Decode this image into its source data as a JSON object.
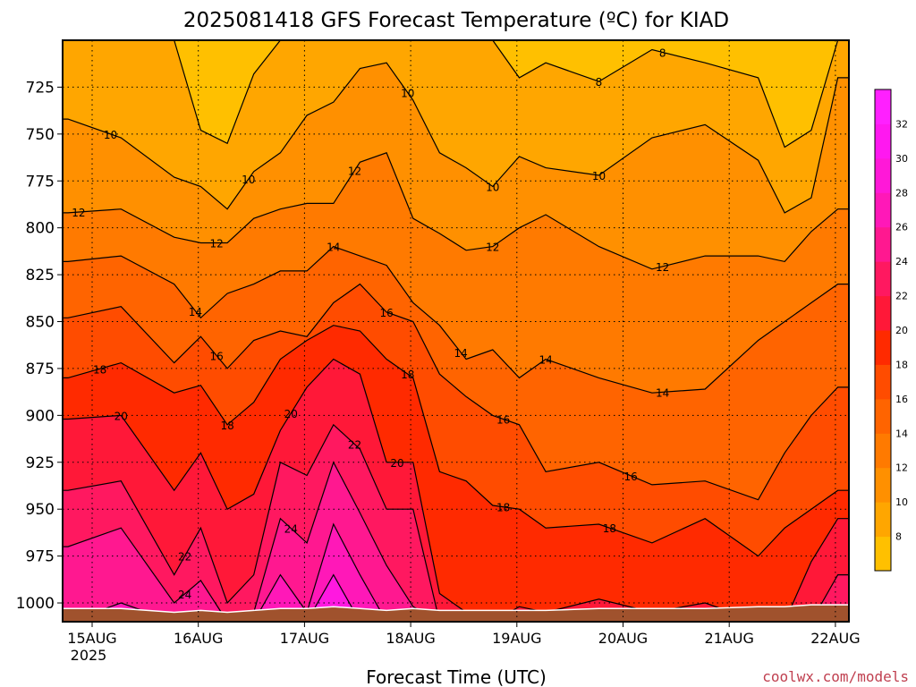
{
  "chart_data": {
    "type": "heatmap",
    "title": "2025081418 GFS Forecast Temperature (ºC) for KIAD",
    "xlabel": "Forecast Time (UTC)",
    "ylabel": "",
    "watermark": "coolwx.com/models",
    "x_ticks": [
      "15AUG",
      "16AUG",
      "17AUG",
      "18AUG",
      "19AUG",
      "20AUG",
      "21AUG",
      "22AUG"
    ],
    "x_year_label": "2025",
    "y_ticks": [
      725,
      750,
      775,
      800,
      825,
      850,
      875,
      900,
      925,
      950,
      975,
      1000
    ],
    "y_range_hpa": [
      1010,
      700
    ],
    "colorbar_ticks": [
      8,
      10,
      12,
      14,
      16,
      18,
      20,
      22,
      24,
      26,
      28,
      30,
      32
    ],
    "colorbar_colors": [
      "#ffc000",
      "#ffa600",
      "#ff9000",
      "#ff7a00",
      "#ff6400",
      "#ff4c00",
      "#ff2a00",
      "#ff1838",
      "#ff1860",
      "#ff1890",
      "#ff18b8",
      "#ff18d8",
      "#ff18f0",
      "#ff20ff"
    ],
    "ground_color": "#a0522d",
    "grid": "dotted",
    "contour_labels": [
      {
        "text": "8",
        "day": 0.0,
        "hpa": 0
      },
      {
        "text": "10",
        "day": 0.0,
        "hpa": 0
      }
    ],
    "profiles": {
      "days": [
        0,
        0.5,
        1.0,
        1.25,
        1.5,
        1.75,
        2.0,
        2.25,
        2.5,
        2.75,
        3.0,
        3.25,
        3.5,
        3.75,
        4.0,
        4.25,
        4.5,
        5.0,
        5.5,
        6.0,
        6.5,
        6.75,
        7.0,
        7.25
      ],
      "iso_hpa": {
        "8": [
          700,
          700,
          700,
          748,
          755,
          718,
          700,
          700,
          700,
          700,
          700,
          700,
          700,
          700,
          700,
          720,
          712,
          722,
          705,
          712,
          720,
          757,
          748,
          700
        ],
        "10": [
          742,
          752,
          773,
          778,
          790,
          770,
          760,
          740,
          733,
          715,
          712,
          732,
          760,
          768,
          778,
          762,
          768,
          772,
          752,
          745,
          764,
          792,
          784,
          720
        ],
        "12": [
          792,
          790,
          805,
          808,
          808,
          795,
          790,
          787,
          787,
          765,
          760,
          795,
          803,
          812,
          810,
          800,
          793,
          810,
          822,
          815,
          815,
          818,
          802,
          790
        ],
        "14": [
          818,
          815,
          830,
          848,
          835,
          830,
          823,
          823,
          810,
          815,
          820,
          840,
          852,
          870,
          865,
          880,
          870,
          880,
          888,
          886,
          860,
          850,
          840,
          830
        ],
        "16": [
          848,
          842,
          872,
          858,
          875,
          860,
          855,
          858,
          840,
          830,
          845,
          850,
          878,
          890,
          900,
          905,
          930,
          925,
          937,
          935,
          945,
          920,
          900,
          885
        ],
        "18": [
          880,
          872,
          888,
          884,
          905,
          893,
          870,
          860,
          852,
          855,
          870,
          880,
          930,
          935,
          948,
          950,
          960,
          958,
          968,
          955,
          975,
          960,
          950,
          940
        ],
        "20": [
          902,
          900,
          940,
          920,
          950,
          942,
          908,
          885,
          870,
          878,
          925,
          925,
          995,
          1005,
          1010,
          1002,
          1005,
          998,
          1005,
          1000,
          1010,
          1010,
          978,
          955
        ],
        "22": [
          940,
          935,
          985,
          960,
          1000,
          985,
          925,
          932,
          905,
          918,
          950,
          950,
          1010,
          1010,
          1010,
          1010,
          1010,
          1010,
          1010,
          1010,
          1010,
          1010,
          1010,
          985
        ],
        "24": [
          970,
          960,
          1000,
          988,
          1010,
          1005,
          955,
          968,
          925,
          952,
          980,
          1002,
          1010,
          1010,
          1010,
          1010,
          1010,
          1010,
          1010,
          1010,
          1010,
          1010,
          1010,
          1010
        ],
        "26": [
          1010,
          1000,
          1010,
          1010,
          1010,
          1010,
          985,
          1005,
          958,
          985,
          1010,
          1010,
          1010,
          1010,
          1010,
          1010,
          1010,
          1010,
          1010,
          1010,
          1010,
          1010,
          1010,
          1010
        ],
        "28": [
          1010,
          1010,
          1010,
          1010,
          1010,
          1010,
          1010,
          1010,
          985,
          1010,
          1010,
          1010,
          1010,
          1010,
          1010,
          1010,
          1010,
          1010,
          1010,
          1010,
          1010,
          1010,
          1010,
          1010
        ]
      },
      "ground_hpa": [
        1003,
        1003,
        1005,
        1004,
        1005,
        1004,
        1003,
        1003,
        1002,
        1003,
        1004,
        1003,
        1004,
        1004,
        1004,
        1004,
        1004,
        1003,
        1003,
        1003,
        1002,
        1002,
        1001,
        1001
      ]
    }
  }
}
